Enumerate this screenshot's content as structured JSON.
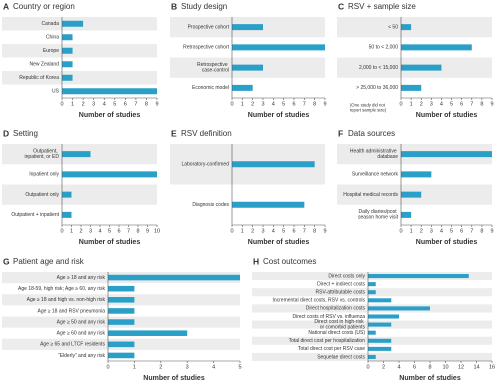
{
  "chart_data": [
    {
      "type": "bar",
      "letter": "A",
      "title": "Country or region",
      "categories": [
        "Canada",
        "China",
        "Europe",
        "New Zealand",
        "Republic of Korea",
        "US"
      ],
      "values": [
        2,
        1,
        1,
        1,
        1,
        9
      ],
      "xlim": [
        0,
        9
      ],
      "xticks": [
        0,
        1,
        2,
        3,
        4,
        5,
        6,
        7,
        8,
        9
      ],
      "xlabel": "Number of studies",
      "color": "#2a9fc7"
    },
    {
      "type": "bar",
      "letter": "B",
      "title": "Study design",
      "categories": [
        "Prospective cohort",
        "Retrospective cohort",
        "Retrospective case-control",
        "Economic model"
      ],
      "values": [
        3,
        9,
        3,
        2
      ],
      "xlim": [
        0,
        9
      ],
      "xticks": [
        0,
        1,
        2,
        3,
        4,
        5,
        6,
        7,
        8,
        9
      ],
      "xlabel": "Number of studies",
      "color": "#2a9fc7"
    },
    {
      "type": "bar",
      "letter": "C",
      "title": "RSV + sample size",
      "categories": [
        "< 50",
        "50 to < 2,000",
        "2,000 to < 15,000",
        "> 25,000 to 36,000"
      ],
      "values": [
        1,
        7,
        4,
        2
      ],
      "xlim": [
        0,
        9
      ],
      "xticks": [
        0,
        1,
        2,
        3,
        4,
        5,
        6,
        7,
        8,
        9
      ],
      "xlabel": "Number of studies",
      "note": "(One study did not report sample size)",
      "color": "#2a9fc7"
    },
    {
      "type": "bar",
      "letter": "D",
      "title": "Setting",
      "categories": [
        "Outpatient, inpatient, or ED",
        "Inpatient only",
        "Outpatient only",
        "Outpatient + inpatient"
      ],
      "values": [
        3,
        10,
        1,
        1
      ],
      "xlim": [
        0,
        10
      ],
      "xticks": [
        0,
        1,
        2,
        3,
        4,
        5,
        6,
        7,
        8,
        9,
        10
      ],
      "xlabel": "Number of studies",
      "color": "#2a9fc7"
    },
    {
      "type": "bar",
      "letter": "E",
      "title": "RSV definition",
      "categories": [
        "Laboratory-confirmed",
        "Diagnosis codes"
      ],
      "values": [
        8,
        7
      ],
      "xlim": [
        0,
        9
      ],
      "xticks": [
        0,
        1,
        2,
        3,
        4,
        5,
        6,
        7,
        8,
        9
      ],
      "xlabel": "Number of studies",
      "color": "#2a9fc7"
    },
    {
      "type": "bar",
      "letter": "F",
      "title": "Data sources",
      "categories": [
        "Health administrative database",
        "Surveillance network",
        "Hospital medical records",
        "Daily diaries/post season home visit"
      ],
      "values": [
        9,
        3,
        2,
        1
      ],
      "xlim": [
        0,
        9
      ],
      "xticks": [
        0,
        1,
        2,
        3,
        4,
        5,
        6,
        7,
        8,
        9
      ],
      "xlabel": "Number of studies",
      "color": "#2a9fc7"
    },
    {
      "type": "bar",
      "letter": "G",
      "title": "Patient age and risk",
      "categories": [
        "Age ≥ 18 and any risk",
        "Age 18-59, high risk; Age ≥ 60, any risk",
        "Age ≥ 18 and high vs. non-high risk",
        "Age ≥ 18 and RSV pneumonia",
        "Age ≥ 50 and any risk",
        "Age ≥ 60 and any risk",
        "Age ≥ 65 and LTCF residents",
        "“Elderly” and any risk"
      ],
      "values": [
        5,
        1,
        1,
        1,
        1,
        3,
        1,
        1
      ],
      "xlim": [
        0,
        5
      ],
      "xticks": [
        0,
        1,
        2,
        3,
        4,
        5
      ],
      "xlabel": "Number of studies",
      "color": "#2a9fc7"
    },
    {
      "type": "bar",
      "letter": "H",
      "title": "Cost outcomes",
      "categories": [
        "Direct costs only",
        "Direct + indirect costs",
        "RSV-attributable costs",
        "Incremental direct costs, RSV vs. controls",
        "Direct hospitalization costs",
        "Direct costs of RSV vs. influenza",
        "Direct cost in high-risk or comorbid patients",
        "National direct costs (US)",
        "Total direct cost per hospitalization",
        "Total direct cost per RSV case",
        "Sequelae direct costs"
      ],
      "values": [
        13,
        1,
        1,
        3,
        8,
        4,
        3,
        1,
        3,
        3,
        1
      ],
      "xlim": [
        0,
        16
      ],
      "xticks": [
        0,
        2,
        4,
        6,
        8,
        10,
        12,
        14,
        16
      ],
      "xlabel": "Number of studies",
      "color": "#2a9fc7"
    }
  ]
}
